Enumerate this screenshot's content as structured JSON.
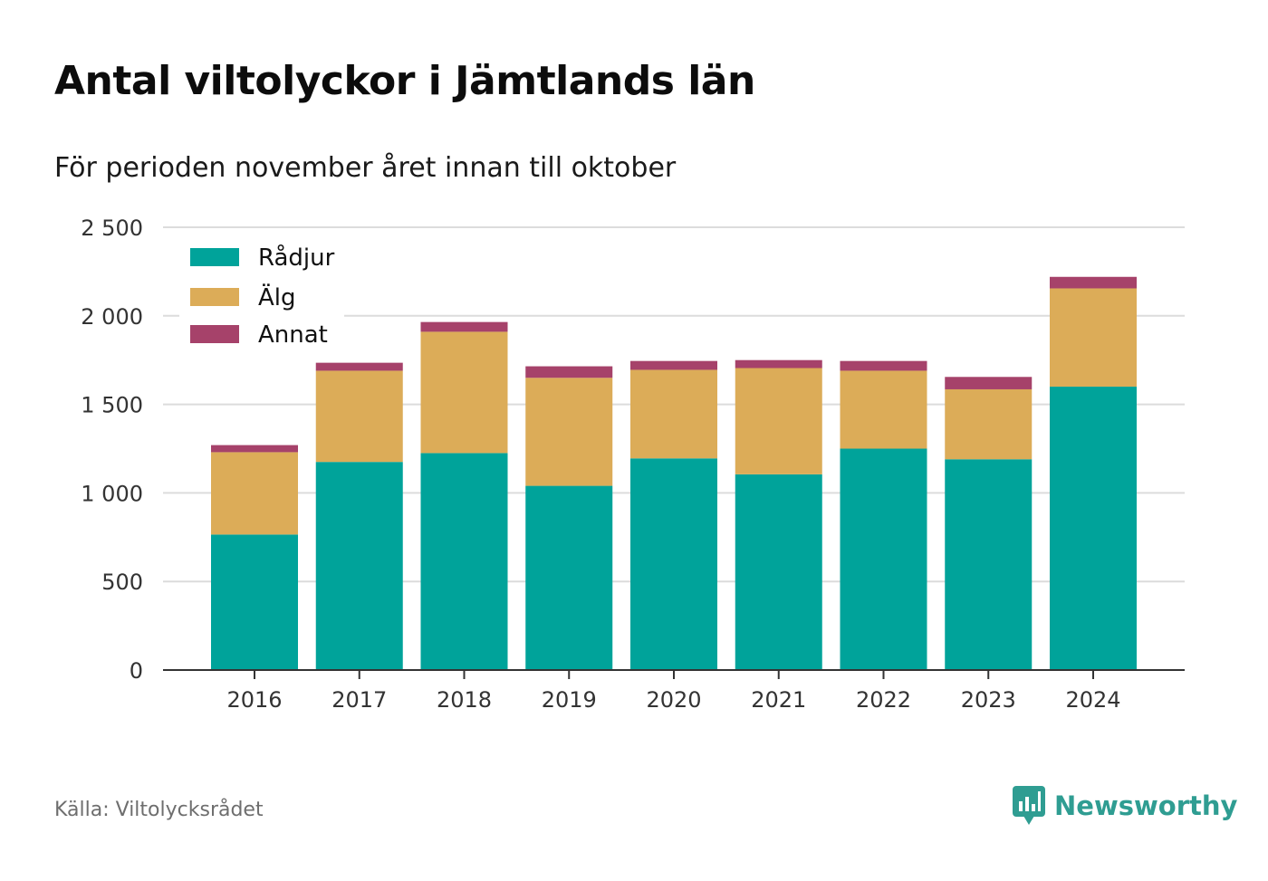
{
  "header": {
    "title": "Antal viltolyckor i Jämtlands län",
    "subtitle": "För perioden november året innan till oktober"
  },
  "footer": {
    "source": "Källa: Viltolycksrådet",
    "brand": "Newsworthy",
    "brand_icon": "bar-chart-speech-bubble-icon",
    "brand_color": "#2f9d92"
  },
  "chart_data": {
    "type": "bar",
    "stacked": true,
    "categories": [
      "2016",
      "2017",
      "2018",
      "2019",
      "2020",
      "2021",
      "2022",
      "2023",
      "2024"
    ],
    "series": [
      {
        "name": "Rådjur",
        "color": "#00a39a",
        "values": [
          765,
          1175,
          1225,
          1040,
          1195,
          1105,
          1250,
          1190,
          1600
        ]
      },
      {
        "name": "Älg",
        "color": "#dcac58",
        "values": [
          465,
          515,
          685,
          610,
          500,
          600,
          440,
          395,
          555
        ]
      },
      {
        "name": "Annat",
        "color": "#a6426a",
        "values": [
          40,
          45,
          55,
          65,
          50,
          45,
          55,
          70,
          65
        ]
      }
    ],
    "ylim": [
      0,
      2500
    ],
    "yticks": [
      0,
      500,
      1000,
      1500,
      2000,
      2500
    ],
    "ytick_labels": [
      "0",
      "500",
      "1 000",
      "1 500",
      "2 000",
      "2 500"
    ],
    "xlabel": "",
    "ylabel": "",
    "grid": true,
    "legend": "top-left"
  }
}
